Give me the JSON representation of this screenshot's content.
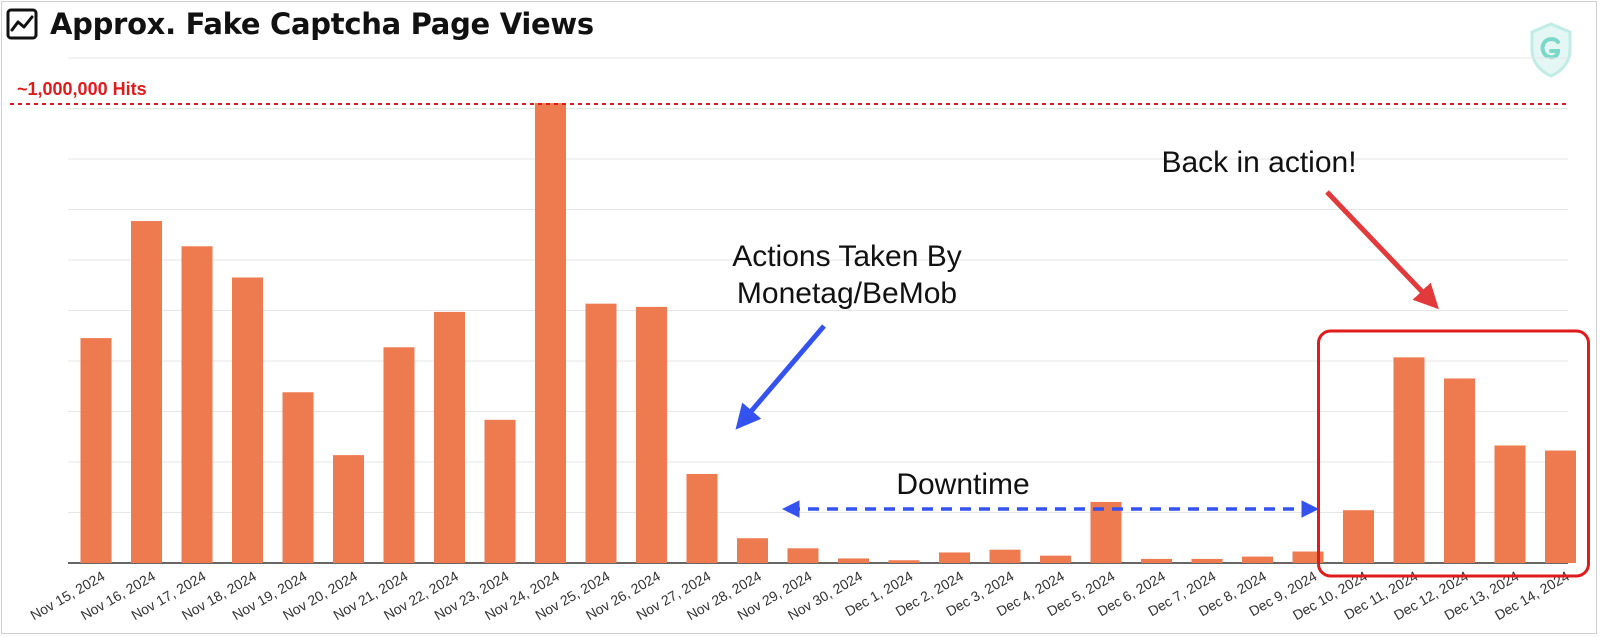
{
  "header": {
    "title": "Approx. Fake Captcha Page Views",
    "icon": "line-chart-icon"
  },
  "brand": {
    "icon": "shield-g-logo-icon"
  },
  "chart_data": {
    "type": "bar",
    "title": "Approx. Fake Captcha Page Views",
    "xlabel": "",
    "ylabel": "",
    "grid": true,
    "ylim": [
      0,
      1000000
    ],
    "categories": [
      "Nov 15, 2024",
      "Nov 16, 2024",
      "Nov 17, 2024",
      "Nov 18, 2024",
      "Nov 19, 2024",
      "Nov 20, 2024",
      "Nov 21, 2024",
      "Nov 22, 2024",
      "Nov 23, 2024",
      "Nov 24, 2024",
      "Nov 25, 2024",
      "Nov 26, 2024",
      "Nov 27, 2024",
      "Nov 28, 2024",
      "Nov 29, 2024",
      "Nov 30, 2024",
      "Dec 1, 2024",
      "Dec 2, 2024",
      "Dec 3, 2024",
      "Dec 4, 2024",
      "Dec 5, 2024",
      "Dec 6, 2024",
      "Dec 7, 2024",
      "Dec 8, 2024",
      "Dec 9, 2024",
      "Dec 10, 2024",
      "Dec 11, 2024",
      "Dec 12, 2024",
      "Dec 13, 2024",
      "Dec 14, 2024"
    ],
    "values": [
      490000,
      745000,
      690000,
      622000,
      372000,
      235000,
      470000,
      547000,
      312000,
      1002000,
      565000,
      558000,
      194000,
      54000,
      32000,
      10000,
      6000,
      23000,
      29000,
      16000,
      133000,
      9000,
      9000,
      14000,
      25000,
      115000,
      448000,
      402000,
      256000,
      245000
    ],
    "bar_color": "#ee7a50",
    "reference_line": {
      "value": 1000000,
      "label": "~1,000,000 Hits",
      "color": "#e01b1b"
    },
    "annotations": {
      "actions": {
        "lines": [
          "Actions Taken By",
          "Monetag/BeMob"
        ],
        "arrow_color": "#3352f0"
      },
      "downtime": {
        "label": "Downtime",
        "from": "Nov 29, 2024",
        "to": "Dec 9, 2024",
        "color": "#3352f0"
      },
      "back": {
        "label": "Back in action!",
        "arrow_color": "#e23a3a",
        "highlight_from": "Dec 10, 2024",
        "highlight_to": "Dec 14, 2024",
        "box_color": "#e01b1b"
      }
    }
  }
}
